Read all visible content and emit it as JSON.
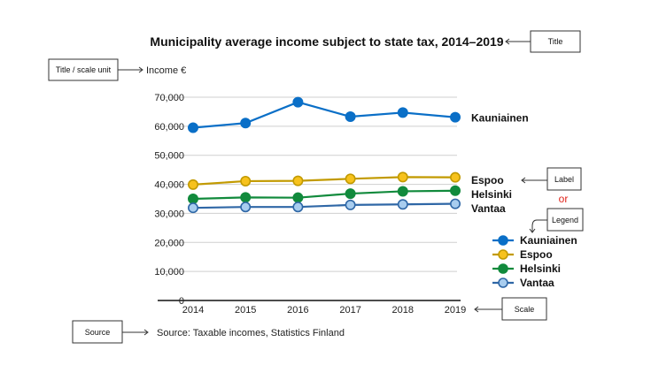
{
  "chart_data": {
    "type": "line",
    "title": "Municipality average income subject to state tax, 2014–2019",
    "ylabel": "Income €",
    "xlabel": "",
    "x": [
      "2014",
      "2015",
      "2016",
      "2017",
      "2018",
      "2019"
    ],
    "ylim": [
      0,
      70000
    ],
    "yticks": [
      0,
      10000,
      20000,
      30000,
      40000,
      50000,
      60000,
      70000
    ],
    "ytick_labels": [
      "0",
      "10,000",
      "20,000",
      "30,000",
      "40,000",
      "50,000",
      "60,000",
      "70,000"
    ],
    "grid": true,
    "legend_position": "right",
    "series": [
      {
        "name": "Kauniainen",
        "color": "#0a6fc7",
        "fill": "#0a6fc7",
        "values": [
          59500,
          61100,
          68300,
          63300,
          64700,
          63100
        ]
      },
      {
        "name": "Espoo",
        "color": "#c29a00",
        "fill": "#f7c21c",
        "values": [
          39900,
          41100,
          41200,
          41900,
          42500,
          42400
        ]
      },
      {
        "name": "Helsinki",
        "color": "#118a3c",
        "fill": "#118a3c",
        "values": [
          35000,
          35500,
          35400,
          36800,
          37600,
          37800
        ]
      },
      {
        "name": "Vantaa",
        "color": "#2f67a6",
        "fill": "#a8cdef",
        "values": [
          31900,
          32200,
          32200,
          32900,
          33100,
          33300
        ]
      }
    ],
    "source": "Source: Taxable incomes, Statistics Finland"
  },
  "annotations": {
    "title_box": "Title",
    "unit_box": "Title / scale unit",
    "label_box": "Label",
    "or_text": "or",
    "or_color": "#e0241b",
    "legend_box": "Legend",
    "scale_box": "Scale",
    "source_box": "Source"
  }
}
